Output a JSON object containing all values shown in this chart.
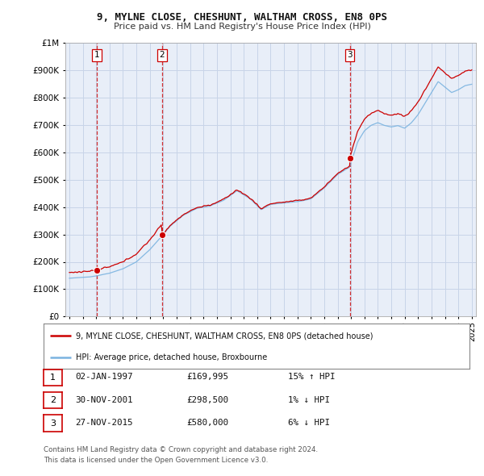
{
  "title": "9, MYLNE CLOSE, CHESHUNT, WALTHAM CROSS, EN8 0PS",
  "subtitle": "Price paid vs. HM Land Registry's House Price Index (HPI)",
  "legend_line1": "9, MYLNE CLOSE, CHESHUNT, WALTHAM CROSS, EN8 0PS (detached house)",
  "legend_line2": "HPI: Average price, detached house, Broxbourne",
  "table_rows": [
    {
      "num": "1",
      "date": "02-JAN-1997",
      "price": "£169,995",
      "hpi": "15% ↑ HPI"
    },
    {
      "num": "2",
      "date": "30-NOV-2001",
      "price": "£298,500",
      "hpi": "1% ↓ HPI"
    },
    {
      "num": "3",
      "date": "27-NOV-2015",
      "price": "£580,000",
      "hpi": "6% ↓ HPI"
    }
  ],
  "footer": "Contains HM Land Registry data © Crown copyright and database right 2024.\nThis data is licensed under the Open Government Licence v3.0.",
  "sale_dates": [
    1997.04,
    2001.92,
    2015.9
  ],
  "sale_prices": [
    169995,
    298500,
    580000
  ],
  "hpi_color": "#7ab3e0",
  "price_color": "#cc0000",
  "vline_color": "#cc0000",
  "bg_color": "#ffffff",
  "plot_bg": "#e8eef8",
  "grid_color": "#c8d4e8",
  "ylim": [
    0,
    1000000
  ],
  "xlim": [
    1994.7,
    2025.3
  ]
}
